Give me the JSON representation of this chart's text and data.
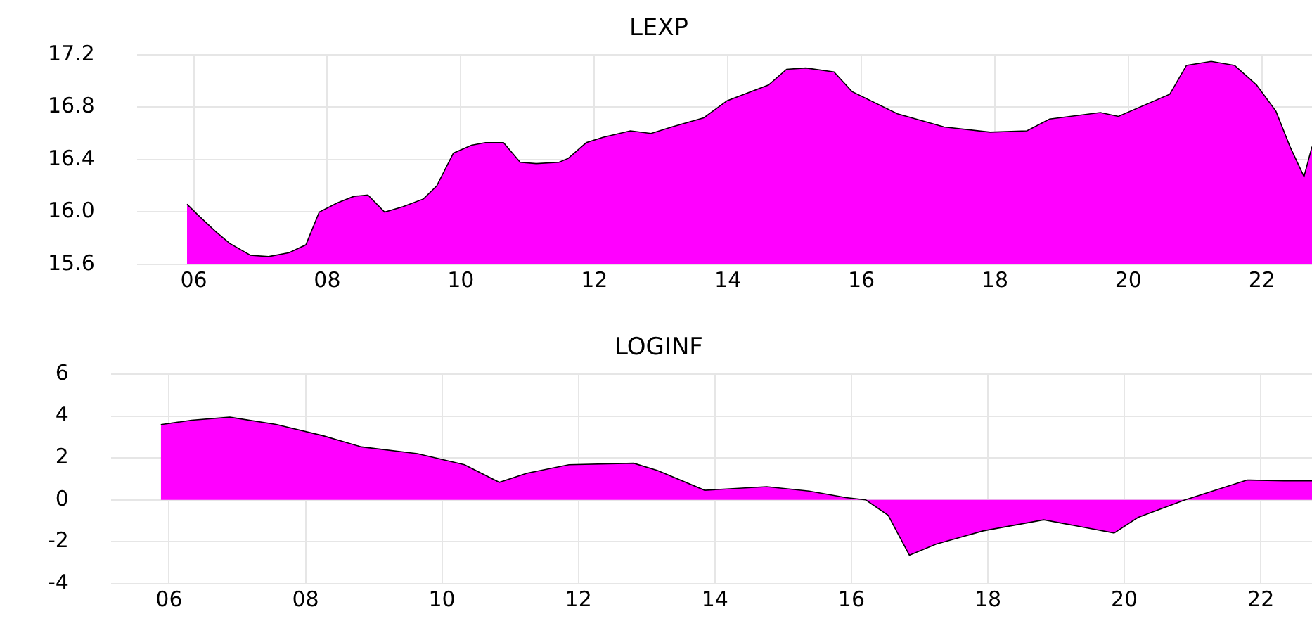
{
  "chart_data": [
    {
      "type": "area",
      "title": "LEXP",
      "color": "#ff00ff",
      "grid": true,
      "x": [
        2005.9,
        2006.08,
        2006.33,
        2006.54,
        2006.85,
        2007.12,
        2007.43,
        2007.68,
        2007.88,
        2008.15,
        2008.4,
        2008.61,
        2008.86,
        2009.13,
        2009.44,
        2009.64,
        2009.89,
        2010.16,
        2010.37,
        2010.64,
        2010.89,
        2011.13,
        2011.47,
        2011.61,
        2011.88,
        2012.13,
        2012.54,
        2012.85,
        2013.16,
        2013.64,
        2013.99,
        2014.61,
        2014.88,
        2015.17,
        2015.59,
        2015.86,
        2016.54,
        2017.24,
        2017.93,
        2018.48,
        2018.82,
        2019.58,
        2019.85,
        2020.62,
        2020.87,
        2021.24,
        2021.59,
        2021.92,
        2022.21,
        2022.42,
        2022.63,
        2022.75
      ],
      "values": [
        16.06,
        15.97,
        15.85,
        15.76,
        15.67,
        15.66,
        15.69,
        15.75,
        16.0,
        16.07,
        16.12,
        16.13,
        16.0,
        16.04,
        16.1,
        16.2,
        16.45,
        16.51,
        16.53,
        16.53,
        16.38,
        16.37,
        16.38,
        16.41,
        16.53,
        16.57,
        16.62,
        16.6,
        16.65,
        16.72,
        16.85,
        16.97,
        17.09,
        17.1,
        17.07,
        16.92,
        16.75,
        16.65,
        16.61,
        16.62,
        16.71,
        16.76,
        16.73,
        16.9,
        17.12,
        17.15,
        17.12,
        16.97,
        16.77,
        16.5,
        16.27,
        16.5
      ],
      "xlim": [
        2005.15,
        2022.75
      ],
      "xticks": [
        {
          "value": 2006,
          "label": "06"
        },
        {
          "value": 2008,
          "label": "08"
        },
        {
          "value": 2010,
          "label": "10"
        },
        {
          "value": 2012,
          "label": "12"
        },
        {
          "value": 2014,
          "label": "14"
        },
        {
          "value": 2016,
          "label": "16"
        },
        {
          "value": 2018,
          "label": "18"
        },
        {
          "value": 2020,
          "label": "20"
        },
        {
          "value": 2022,
          "label": "22"
        }
      ],
      "ylim": [
        15.6,
        17.2
      ],
      "yticks": [
        15.6,
        {
          "value": 16,
          "label": "16.0"
        },
        16.4,
        16.8,
        17.2
      ]
    },
    {
      "type": "area",
      "title": "LOGINF",
      "color": "#ff00ff",
      "grid": true,
      "x": [
        2005.88,
        2006.33,
        2006.89,
        2007.57,
        2008.26,
        2008.82,
        2009.64,
        2010.33,
        2010.84,
        2011.24,
        2011.86,
        2012.81,
        2013.16,
        2013.85,
        2014.76,
        2015.38,
        2015.92,
        2016.21,
        2016.54,
        2016.85,
        2017.24,
        2017.93,
        2018.82,
        2019.85,
        2020.2,
        2020.89,
        2021.8,
        2022.34,
        2022.75
      ],
      "values": [
        3.59,
        3.8,
        3.95,
        3.6,
        3.06,
        2.53,
        2.21,
        1.68,
        0.84,
        1.27,
        1.68,
        1.75,
        1.4,
        0.46,
        0.63,
        0.42,
        0.11,
        0,
        -0.74,
        -2.64,
        -2.11,
        -1.48,
        -0.95,
        -1.58,
        -0.84,
        0,
        0.95,
        0.91,
        0.91
      ],
      "xlim": [
        2005.15,
        2022.75
      ],
      "xticks": [
        {
          "value": 2006,
          "label": "06"
        },
        {
          "value": 2008,
          "label": "08"
        },
        {
          "value": 2010,
          "label": "10"
        },
        {
          "value": 2012,
          "label": "12"
        },
        {
          "value": 2014,
          "label": "14"
        },
        {
          "value": 2016,
          "label": "16"
        },
        {
          "value": 2018,
          "label": "18"
        },
        {
          "value": 2020,
          "label": "20"
        },
        {
          "value": 2022,
          "label": "22"
        }
      ],
      "ylim": [
        -4,
        6
      ],
      "yticks": [
        -4,
        -2,
        0,
        2,
        4,
        6
      ]
    }
  ]
}
